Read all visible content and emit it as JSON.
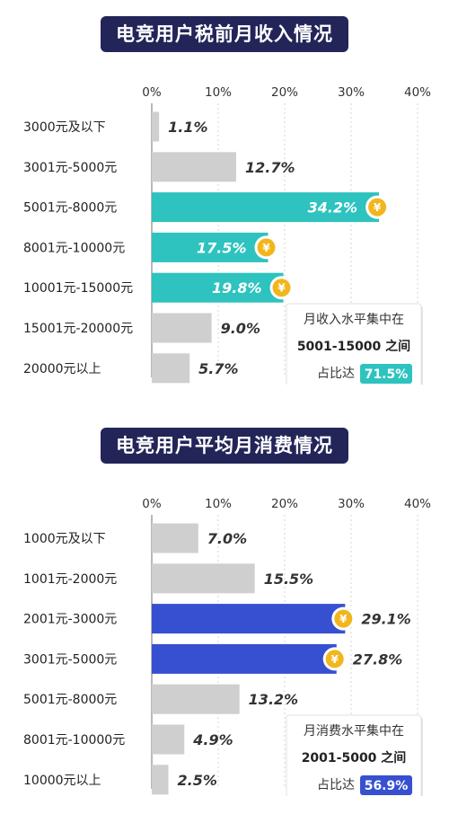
{
  "colors": {
    "gray": "#cfcfcf",
    "teal": "#2ec3bf",
    "blue": "#3750d1",
    "coin": "#f2b61d",
    "title_bg": "#232559"
  },
  "chart_data": [
    {
      "type": "bar",
      "orientation": "horizontal",
      "title": "电竞用户税前月收入情况",
      "ticks": [
        "0%",
        "10%",
        "20%",
        "30%",
        "40%"
      ],
      "xlim": [
        0,
        40
      ],
      "unit": "%",
      "categories": [
        "3000元及以下",
        "3001元-5000元",
        "5001元-8000元",
        "8001元-10000元",
        "10001元-15000元",
        "15001元-20000元",
        "20000元以上"
      ],
      "values": [
        1.1,
        12.7,
        34.2,
        17.5,
        19.8,
        9.0,
        5.7
      ],
      "highlighted": [
        false,
        false,
        true,
        true,
        true,
        false,
        false
      ],
      "highlight_color": "teal",
      "annotation": {
        "line1": "月收入水平集中在",
        "line2": "5001-15000 之间",
        "line3": "占比达",
        "badge": "71.5%"
      }
    },
    {
      "type": "bar",
      "orientation": "horizontal",
      "title": "电竞用户平均月消费情况",
      "ticks": [
        "0%",
        "10%",
        "20%",
        "30%",
        "40%"
      ],
      "xlim": [
        0,
        40
      ],
      "unit": "%",
      "categories": [
        "1000元及以下",
        "1001元-2000元",
        "2001元-3000元",
        "3001元-5000元",
        "5001元-8000元",
        "8001元-10000元",
        "10000元以上"
      ],
      "values": [
        7.0,
        15.5,
        29.1,
        27.8,
        13.2,
        4.9,
        2.5
      ],
      "highlighted": [
        false,
        false,
        true,
        true,
        false,
        false,
        false
      ],
      "highlight_color": "blue",
      "annotation": {
        "line1": "月消费水平集中在",
        "line2": "2001-5000 之间",
        "line3": "占比达",
        "badge": "56.9%"
      }
    }
  ],
  "coin_symbol": "¥"
}
